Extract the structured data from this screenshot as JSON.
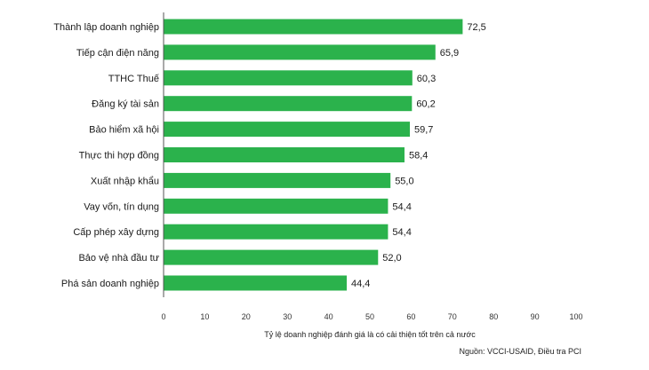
{
  "chart_data": {
    "type": "bar",
    "orientation": "horizontal",
    "categories": [
      "Thành lập doanh nghiệp",
      "Tiếp cận điện năng",
      "TTHC Thuế",
      "Đăng ký tài sản",
      "Bảo hiểm xã hội",
      "Thực thi hợp đồng",
      "Xuất nhập khẩu",
      "Vay vốn, tín dụng",
      "Cấp phép xây dựng",
      "Bảo vệ nhà đầu tư",
      "Phá sản doanh nghiệp"
    ],
    "values": [
      72.5,
      65.9,
      60.3,
      60.2,
      59.7,
      58.4,
      55.0,
      54.4,
      54.4,
      52.0,
      44.4
    ],
    "value_labels": [
      "72,5",
      "65,9",
      "60,3",
      "60,2",
      "59,7",
      "58,4",
      "55,0",
      "54,4",
      "54,4",
      "52,0",
      "44,4"
    ],
    "xlim": [
      0,
      100
    ],
    "xticks": [
      0,
      10,
      20,
      30,
      40,
      50,
      60,
      70,
      80,
      90,
      100
    ],
    "xlabel": "Tỷ lệ doanh nghiệp đánh giá là có cải thiện tốt trên cả nước",
    "source": "Nguồn: VCCI-USAID, Điều tra PCI",
    "grid": false,
    "bar_color": "#2bb24c",
    "axis_color": "#555555"
  }
}
